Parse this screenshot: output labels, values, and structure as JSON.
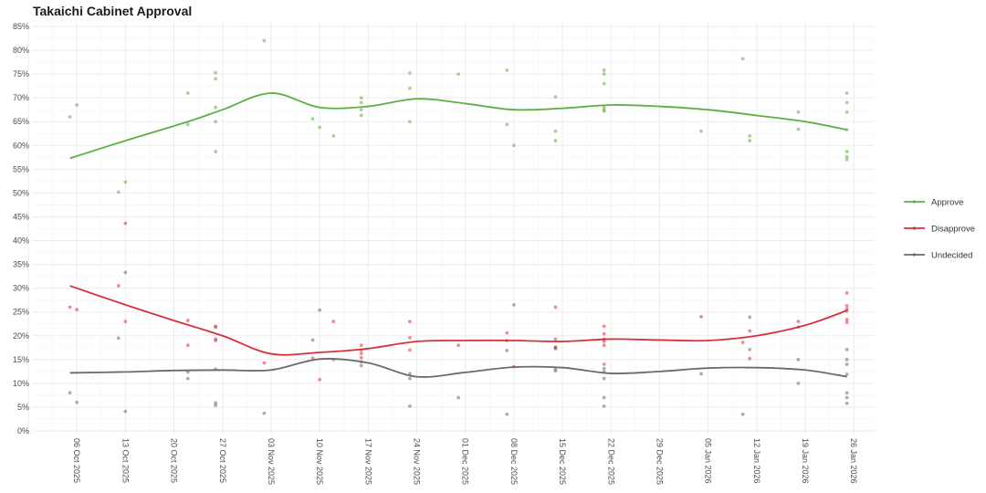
{
  "title": "Takaichi Cabinet Approval",
  "chart_data": {
    "type": "scatter",
    "title": "Takaichi Cabinet Approval",
    "xlabel": "",
    "ylabel": "",
    "xlim": [
      "2025-09-29",
      "2026-01-29"
    ],
    "ylim": [
      0,
      85
    ],
    "y_ticks": [
      "0%",
      "5%",
      "10%",
      "15%",
      "20%",
      "25%",
      "30%",
      "35%",
      "40%",
      "45%",
      "50%",
      "55%",
      "60%",
      "65%",
      "70%",
      "75%",
      "80%",
      "85%"
    ],
    "x_ticks": [
      {
        "date": "2025-10-06",
        "label": "06 Oct 2025"
      },
      {
        "date": "2025-10-13",
        "label": "13 Oct 2025"
      },
      {
        "date": "2025-10-20",
        "label": "20 Oct 2025"
      },
      {
        "date": "2025-10-27",
        "label": "27 Oct 2025"
      },
      {
        "date": "2025-11-03",
        "label": "03 Nov 2025"
      },
      {
        "date": "2025-11-10",
        "label": "10 Nov 2025"
      },
      {
        "date": "2025-11-17",
        "label": "17 Nov 2025"
      },
      {
        "date": "2025-11-24",
        "label": "24 Nov 2025"
      },
      {
        "date": "2025-12-01",
        "label": "01 Dec 2025"
      },
      {
        "date": "2025-12-08",
        "label": "08 Dec 2025"
      },
      {
        "date": "2025-12-15",
        "label": "15 Dec 2025"
      },
      {
        "date": "2025-12-22",
        "label": "22 Dec 2025"
      },
      {
        "date": "2025-12-29",
        "label": "29 Dec 2025"
      },
      {
        "date": "2026-01-05",
        "label": "05 Jan 2026"
      },
      {
        "date": "2026-01-12",
        "label": "12 Jan 2026"
      },
      {
        "date": "2026-01-19",
        "label": "19 Jan 2026"
      },
      {
        "date": "2026-01-26",
        "label": "26 Jan 2026"
      }
    ],
    "grid": true,
    "legend_position": "right",
    "series": [
      {
        "name": "Approve",
        "color": "#5fae45",
        "points": [
          [
            "2025-10-05",
            66
          ],
          [
            "2025-10-06",
            68.5
          ],
          [
            "2025-10-12",
            50.2
          ],
          [
            "2025-10-13",
            52.3
          ],
          [
            "2025-10-22",
            71
          ],
          [
            "2025-10-22",
            64.4
          ],
          [
            "2025-10-26",
            75.3
          ],
          [
            "2025-10-26",
            74
          ],
          [
            "2025-10-26",
            68
          ],
          [
            "2025-10-26",
            65
          ],
          [
            "2025-10-26",
            58.7
          ],
          [
            "2025-11-02",
            82
          ],
          [
            "2025-11-09",
            65.6
          ],
          [
            "2025-11-10",
            63.8
          ],
          [
            "2025-11-12",
            62
          ],
          [
            "2025-11-16",
            70
          ],
          [
            "2025-11-16",
            69
          ],
          [
            "2025-11-16",
            67.5
          ],
          [
            "2025-11-16",
            66.3
          ],
          [
            "2025-11-23",
            75.2
          ],
          [
            "2025-11-23",
            72
          ],
          [
            "2025-11-23",
            65
          ],
          [
            "2025-11-30",
            75
          ],
          [
            "2025-12-07",
            75.8
          ],
          [
            "2025-12-07",
            64.4
          ],
          [
            "2025-12-08",
            60
          ],
          [
            "2025-12-14",
            70.2
          ],
          [
            "2025-12-14",
            63
          ],
          [
            "2025-12-14",
            61
          ],
          [
            "2025-12-21",
            75.8
          ],
          [
            "2025-12-21",
            75
          ],
          [
            "2025-12-21",
            73
          ],
          [
            "2025-12-21",
            68
          ],
          [
            "2025-12-21",
            67.5
          ],
          [
            "2025-12-21",
            67.2
          ],
          [
            "2026-01-04",
            63
          ],
          [
            "2026-01-10",
            78.2
          ],
          [
            "2026-01-11",
            62
          ],
          [
            "2026-01-11",
            61
          ],
          [
            "2026-01-18",
            67
          ],
          [
            "2026-01-18",
            63.4
          ],
          [
            "2026-01-25",
            71
          ],
          [
            "2026-01-25",
            69
          ],
          [
            "2026-01-25",
            67
          ],
          [
            "2026-01-25",
            63.3
          ],
          [
            "2026-01-25",
            58.7
          ],
          [
            "2026-01-25",
            57.6
          ],
          [
            "2026-01-25",
            57
          ]
        ],
        "trend": [
          [
            "2025-10-05",
            57.3
          ],
          [
            "2025-10-13",
            61
          ],
          [
            "2025-10-22",
            65
          ],
          [
            "2025-10-27",
            67.5
          ],
          [
            "2025-11-03",
            71
          ],
          [
            "2025-11-10",
            68
          ],
          [
            "2025-11-17",
            68.2
          ],
          [
            "2025-11-24",
            69.8
          ],
          [
            "2025-12-01",
            68.8
          ],
          [
            "2025-12-08",
            67.5
          ],
          [
            "2025-12-15",
            67.8
          ],
          [
            "2025-12-22",
            68.5
          ],
          [
            "2025-12-29",
            68.2
          ],
          [
            "2026-01-05",
            67.5
          ],
          [
            "2026-01-12",
            66.3
          ],
          [
            "2026-01-19",
            65
          ],
          [
            "2026-01-25",
            63.3
          ]
        ]
      },
      {
        "name": "Disapprove",
        "color": "#d7323a",
        "points": [
          [
            "2025-10-05",
            26
          ],
          [
            "2025-10-06",
            25.5
          ],
          [
            "2025-10-12",
            30.5
          ],
          [
            "2025-10-13",
            23
          ],
          [
            "2025-10-13",
            43.6
          ],
          [
            "2025-10-22",
            23.2
          ],
          [
            "2025-10-22",
            18
          ],
          [
            "2025-10-26",
            22
          ],
          [
            "2025-10-26",
            21.8
          ],
          [
            "2025-10-26",
            19.3
          ],
          [
            "2025-10-26",
            19
          ],
          [
            "2025-11-02",
            14.3
          ],
          [
            "2025-11-09",
            15.3
          ],
          [
            "2025-11-10",
            10.8
          ],
          [
            "2025-11-12",
            23
          ],
          [
            "2025-11-16",
            18
          ],
          [
            "2025-11-16",
            17
          ],
          [
            "2025-11-16",
            16.3
          ],
          [
            "2025-11-16",
            15.4
          ],
          [
            "2025-11-23",
            23
          ],
          [
            "2025-11-23",
            19.6
          ],
          [
            "2025-11-23",
            17
          ],
          [
            "2025-11-30",
            18
          ],
          [
            "2025-12-07",
            20.6
          ],
          [
            "2025-12-07",
            19
          ],
          [
            "2025-12-08",
            13.5
          ],
          [
            "2025-12-14",
            26
          ],
          [
            "2025-12-14",
            19.3
          ],
          [
            "2025-12-14",
            17.5
          ],
          [
            "2025-12-14",
            17.3
          ],
          [
            "2025-12-21",
            22
          ],
          [
            "2025-12-21",
            20.4
          ],
          [
            "2025-12-21",
            19.3
          ],
          [
            "2025-12-21",
            18.8
          ],
          [
            "2025-12-21",
            18
          ],
          [
            "2025-12-21",
            14
          ],
          [
            "2026-01-04",
            24
          ],
          [
            "2026-01-10",
            18.6
          ],
          [
            "2026-01-11",
            21
          ],
          [
            "2026-01-11",
            15.2
          ],
          [
            "2026-01-18",
            23
          ],
          [
            "2026-01-18",
            21.8
          ],
          [
            "2026-01-25",
            29
          ],
          [
            "2026-01-25",
            26.3
          ],
          [
            "2026-01-25",
            25.6
          ],
          [
            "2026-01-25",
            25.2
          ],
          [
            "2026-01-25",
            23.4
          ],
          [
            "2026-01-25",
            22.8
          ]
        ],
        "trend": [
          [
            "2025-10-05",
            30.5
          ],
          [
            "2025-10-13",
            26.5
          ],
          [
            "2025-10-20",
            23.2
          ],
          [
            "2025-10-27",
            20
          ],
          [
            "2025-11-03",
            16.2
          ],
          [
            "2025-11-10",
            16.5
          ],
          [
            "2025-11-17",
            17.3
          ],
          [
            "2025-11-24",
            18.8
          ],
          [
            "2025-12-01",
            19
          ],
          [
            "2025-12-08",
            19
          ],
          [
            "2025-12-15",
            18.8
          ],
          [
            "2025-12-22",
            19.3
          ],
          [
            "2025-12-29",
            19.1
          ],
          [
            "2026-01-05",
            19
          ],
          [
            "2026-01-12",
            20
          ],
          [
            "2026-01-19",
            22.2
          ],
          [
            "2026-01-25",
            25.3
          ]
        ]
      },
      {
        "name": "Undecided",
        "color": "#6b6b6b",
        "points": [
          [
            "2025-10-05",
            8
          ],
          [
            "2025-10-06",
            6
          ],
          [
            "2025-10-12",
            19.5
          ],
          [
            "2025-10-13",
            33.3
          ],
          [
            "2025-10-13",
            4.1
          ],
          [
            "2025-10-22",
            12.4
          ],
          [
            "2025-10-22",
            11
          ],
          [
            "2025-10-26",
            13
          ],
          [
            "2025-10-26",
            5.9
          ],
          [
            "2025-10-26",
            5.4
          ],
          [
            "2025-11-02",
            3.7
          ],
          [
            "2025-11-09",
            19.1
          ],
          [
            "2025-11-10",
            25.4
          ],
          [
            "2025-11-12",
            15
          ],
          [
            "2025-11-16",
            14.5
          ],
          [
            "2025-11-16",
            13.7
          ],
          [
            "2025-11-23",
            12
          ],
          [
            "2025-11-23",
            11
          ],
          [
            "2025-11-23",
            5.2
          ],
          [
            "2025-11-30",
            7
          ],
          [
            "2025-12-07",
            16.9
          ],
          [
            "2025-12-07",
            3.5
          ],
          [
            "2025-12-08",
            26.5
          ],
          [
            "2025-12-14",
            17.6
          ],
          [
            "2025-12-14",
            13
          ],
          [
            "2025-12-14",
            12.6
          ],
          [
            "2025-12-21",
            13.1
          ],
          [
            "2025-12-21",
            12.4
          ],
          [
            "2025-12-21",
            11
          ],
          [
            "2025-12-21",
            7
          ],
          [
            "2025-12-21",
            5.2
          ],
          [
            "2026-01-04",
            12
          ],
          [
            "2026-01-10",
            3.5
          ],
          [
            "2026-01-11",
            23.9
          ],
          [
            "2026-01-11",
            17.1
          ],
          [
            "2026-01-18",
            15
          ],
          [
            "2026-01-18",
            10
          ],
          [
            "2026-01-25",
            17.1
          ],
          [
            "2026-01-25",
            15
          ],
          [
            "2026-01-25",
            14
          ],
          [
            "2026-01-25",
            11.9
          ],
          [
            "2026-01-25",
            8
          ],
          [
            "2026-01-25",
            7
          ],
          [
            "2026-01-25",
            5.8
          ]
        ],
        "trend": [
          [
            "2025-10-05",
            12.2
          ],
          [
            "2025-10-13",
            12.4
          ],
          [
            "2025-10-20",
            12.7
          ],
          [
            "2025-10-27",
            12.8
          ],
          [
            "2025-11-03",
            12.8
          ],
          [
            "2025-11-10",
            15.1
          ],
          [
            "2025-11-17",
            14.3
          ],
          [
            "2025-11-24",
            11.4
          ],
          [
            "2025-12-01",
            12.3
          ],
          [
            "2025-12-08",
            13.4
          ],
          [
            "2025-12-15",
            13.3
          ],
          [
            "2025-12-22",
            12.1
          ],
          [
            "2025-12-29",
            12.5
          ],
          [
            "2026-01-05",
            13.2
          ],
          [
            "2026-01-12",
            13.3
          ],
          [
            "2026-01-19",
            12.8
          ],
          [
            "2026-01-25",
            11.4
          ]
        ]
      }
    ]
  }
}
